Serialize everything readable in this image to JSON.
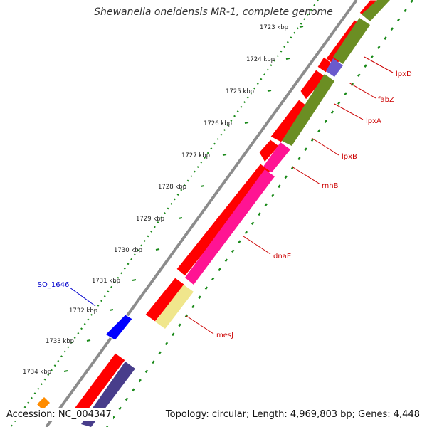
{
  "title": "Shewanella oneidensis MR-1, complete genome",
  "footer": {
    "accession": "Accession: NC_004347",
    "topology": "Topology: circular; Length: 4,969,803 bp; Genes: 4,448"
  },
  "ticks": [
    {
      "label": "1723 kbp"
    },
    {
      "label": "1724 kbp"
    },
    {
      "label": "1725 kbp"
    },
    {
      "label": "1726 kbp"
    },
    {
      "label": "1727 kbp"
    },
    {
      "label": "1728 kbp"
    },
    {
      "label": "1729 kbp"
    },
    {
      "label": "1730 kbp"
    },
    {
      "label": "1731 kbp"
    },
    {
      "label": "1732 kbp"
    },
    {
      "label": "1733 kbp"
    },
    {
      "label": "1734 kbp"
    }
  ],
  "gene_labels": [
    {
      "name": "lpxD",
      "color": "#cc0000"
    },
    {
      "name": "fabZ",
      "color": "#cc0000"
    },
    {
      "name": "lpxA",
      "color": "#cc0000"
    },
    {
      "name": "lpxB",
      "color": "#cc0000"
    },
    {
      "name": "rnhB",
      "color": "#cc0000"
    },
    {
      "name": "dnaE",
      "color": "#cc0000"
    },
    {
      "name": "mesJ",
      "color": "#cc0000"
    },
    {
      "name": "SO_1646",
      "color": "#0000cc"
    }
  ],
  "colors": {
    "backbone": "#8c8c8c",
    "cds": "#ff0000",
    "functional_green": "#6b8e23",
    "functional_magenta": "#ff1493",
    "functional_yellow": "#f0e68c",
    "functional_purple": "#6a5acd",
    "functional_navy": "#483d8b",
    "blue_cds": "#0000ff",
    "orange_cds": "#ff8c00",
    "tick_dots": "#1a8a1a"
  }
}
